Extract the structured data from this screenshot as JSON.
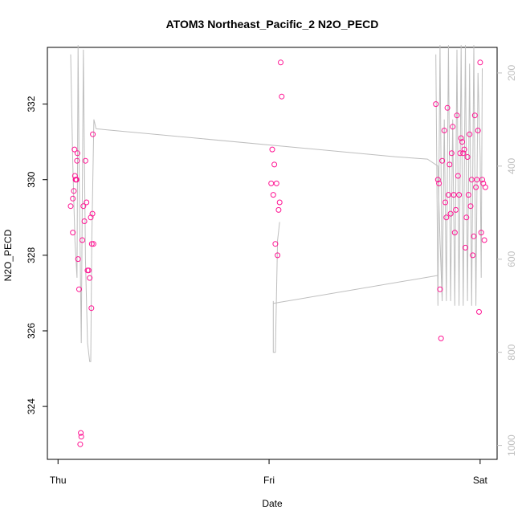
{
  "chart_data": {
    "type": "scatter",
    "title": "ATOM3 Northeast_Pacific_2 N2O_PECD",
    "xlabel": "Date",
    "ylabel": "N2O_PECD",
    "x_ticks": [
      "Thu",
      "Fri",
      "Sat"
    ],
    "y_ticks": [
      "324",
      "326",
      "328",
      "330",
      "332"
    ],
    "ylim": [
      322.6,
      333.5
    ],
    "secondary_axis": {
      "ticks": [
        "200",
        "400",
        "600",
        "800",
        "1000"
      ],
      "ylim": [
        1030,
        145
      ],
      "reversed": true,
      "color": "#bebebe"
    },
    "series": [
      {
        "marker": "open-circle",
        "color": "#ff1493",
        "points": [
          [
            0.06,
            329.3
          ],
          [
            0.07,
            329.5
          ],
          [
            0.075,
            329.7
          ],
          [
            0.078,
            330.8
          ],
          [
            0.08,
            330.1
          ],
          [
            0.083,
            330.0
          ],
          [
            0.085,
            330.0
          ],
          [
            0.088,
            330.0
          ],
          [
            0.09,
            330.5
          ],
          [
            0.092,
            330.7
          ],
          [
            0.095,
            327.9
          ],
          [
            0.1,
            327.1
          ],
          [
            0.105,
            323.0
          ],
          [
            0.108,
            323.3
          ],
          [
            0.11,
            323.2
          ],
          [
            0.115,
            328.4
          ],
          [
            0.12,
            329.3
          ],
          [
            0.125,
            328.9
          ],
          [
            0.13,
            330.5
          ],
          [
            0.135,
            329.4
          ],
          [
            0.14,
            327.6
          ],
          [
            0.145,
            327.6
          ],
          [
            0.15,
            327.4
          ],
          [
            0.155,
            329.0
          ],
          [
            0.158,
            326.6
          ],
          [
            0.16,
            328.3
          ],
          [
            0.163,
            329.1
          ],
          [
            0.165,
            331.2
          ],
          [
            0.168,
            328.3
          ],
          [
            0.07,
            328.6
          ],
          [
            1.01,
            329.9
          ],
          [
            1.015,
            330.8
          ],
          [
            1.02,
            329.6
          ],
          [
            1.025,
            330.4
          ],
          [
            1.03,
            328.3
          ],
          [
            1.035,
            329.9
          ],
          [
            1.04,
            328.0
          ],
          [
            1.045,
            329.2
          ],
          [
            1.05,
            329.4
          ],
          [
            1.055,
            333.1
          ],
          [
            1.06,
            332.2
          ],
          [
            1.79,
            332.0
          ],
          [
            1.8,
            330.0
          ],
          [
            1.805,
            329.9
          ],
          [
            1.81,
            327.1
          ],
          [
            1.815,
            325.8
          ],
          [
            1.82,
            330.5
          ],
          [
            1.83,
            331.3
          ],
          [
            1.835,
            329.4
          ],
          [
            1.84,
            329.0
          ],
          [
            1.845,
            331.9
          ],
          [
            1.85,
            329.6
          ],
          [
            1.855,
            330.4
          ],
          [
            1.86,
            329.1
          ],
          [
            1.865,
            330.7
          ],
          [
            1.87,
            331.4
          ],
          [
            1.875,
            329.6
          ],
          [
            1.88,
            328.6
          ],
          [
            1.885,
            329.2
          ],
          [
            1.89,
            331.7
          ],
          [
            1.895,
            330.1
          ],
          [
            1.9,
            329.6
          ],
          [
            1.905,
            330.7
          ],
          [
            1.91,
            331.1
          ],
          [
            1.915,
            331.0
          ],
          [
            1.92,
            330.7
          ],
          [
            1.925,
            330.8
          ],
          [
            1.93,
            328.2
          ],
          [
            1.935,
            329.0
          ],
          [
            1.94,
            330.6
          ],
          [
            1.945,
            329.6
          ],
          [
            1.95,
            331.2
          ],
          [
            1.955,
            329.3
          ],
          [
            1.96,
            330.0
          ],
          [
            1.965,
            328.0
          ],
          [
            1.97,
            328.5
          ],
          [
            1.975,
            331.7
          ],
          [
            1.98,
            329.8
          ],
          [
            1.985,
            330.0
          ],
          [
            1.99,
            331.3
          ],
          [
            1.995,
            326.5
          ],
          [
            2.0,
            333.1
          ],
          [
            2.005,
            328.6
          ],
          [
            2.01,
            330.0
          ],
          [
            2.015,
            329.9
          ],
          [
            2.02,
            328.4
          ],
          [
            2.025,
            329.8
          ]
        ]
      }
    ],
    "profile_line_color": "#bebebe"
  }
}
